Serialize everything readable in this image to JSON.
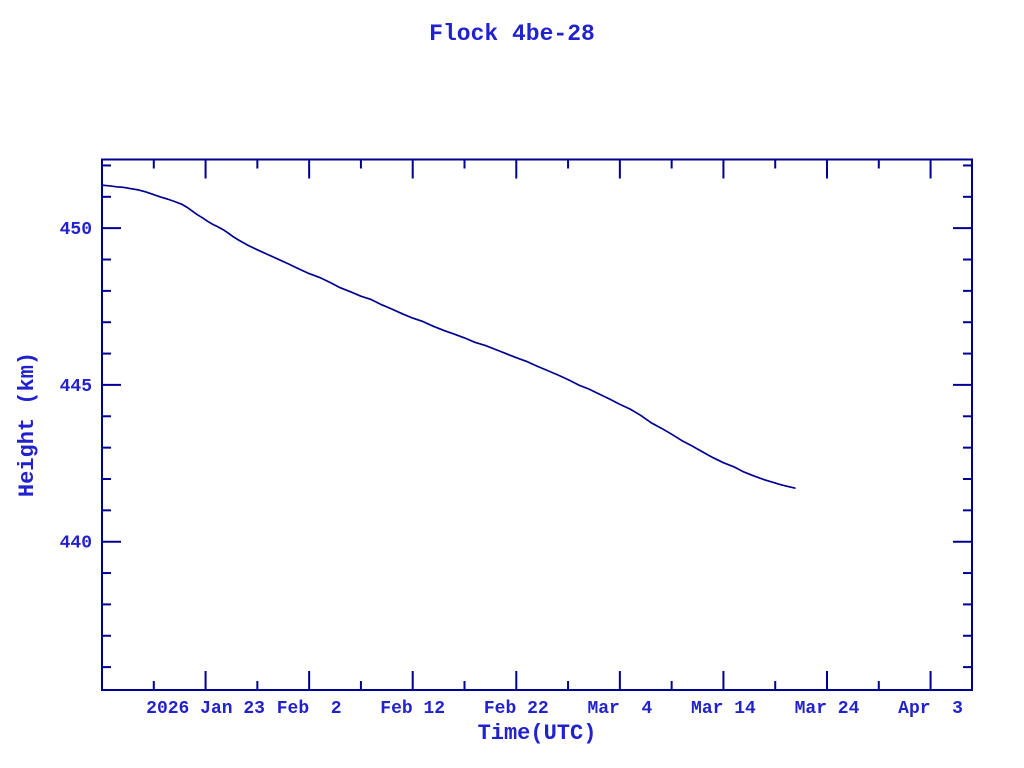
{
  "window": {
    "background": "#FFFFFF"
  },
  "chart_data": {
    "type": "line",
    "title": "Flock 4be-28",
    "xlabel": "Time(UTC)",
    "ylabel": "Height (km)",
    "x_unit_days_since": "2026 Jan 13",
    "xlim": [
      0,
      84
    ],
    "ylim": [
      435.27,
      452.19
    ],
    "grid": false,
    "legend": "none",
    "x_major_ticks": [
      {
        "t": 10,
        "label": "2026 Jan 23"
      },
      {
        "t": 20,
        "label": "Feb  2"
      },
      {
        "t": 30,
        "label": "Feb 12"
      },
      {
        "t": 40,
        "label": "Feb 22"
      },
      {
        "t": 50,
        "label": "Mar  4"
      },
      {
        "t": 60,
        "label": "Mar 14"
      },
      {
        "t": 70,
        "label": "Mar 24"
      },
      {
        "t": 80,
        "label": "Apr  3"
      }
    ],
    "x_minor_ticks": [
      5,
      15,
      25,
      35,
      45,
      55,
      65,
      75
    ],
    "y_major_ticks": [
      {
        "v": 440,
        "label": "440"
      },
      {
        "v": 445,
        "label": "445"
      },
      {
        "v": 450,
        "label": "450"
      }
    ],
    "y_minor_step": 1,
    "colors": {
      "line": "#000090",
      "axis": "#000090",
      "text": "#2222CC",
      "background": "#FFFFFF"
    },
    "series": [
      {
        "name": "Flock 4be-28 height",
        "points": [
          [
            0,
            451.37
          ],
          [
            0.7,
            451.35
          ],
          [
            1.4,
            451.32
          ],
          [
            2.1,
            451.3
          ],
          [
            2.8,
            451.26
          ],
          [
            3.5,
            451.22
          ],
          [
            4.2,
            451.16
          ],
          [
            4.9,
            451.08
          ],
          [
            5.6,
            451.0
          ],
          [
            6.3,
            450.93
          ],
          [
            7,
            450.85
          ],
          [
            7.7,
            450.76
          ],
          [
            8.2,
            450.67
          ],
          [
            8.7,
            450.55
          ],
          [
            9.2,
            450.43
          ],
          [
            9.7,
            450.33
          ],
          [
            10.2,
            450.22
          ],
          [
            10.7,
            450.12
          ],
          [
            11.2,
            450.04
          ],
          [
            11.7,
            449.95
          ],
          [
            12.2,
            449.84
          ],
          [
            12.7,
            449.72
          ],
          [
            13.2,
            449.62
          ],
          [
            14,
            449.47
          ],
          [
            15,
            449.31
          ],
          [
            16,
            449.16
          ],
          [
            17,
            449.01
          ],
          [
            18,
            448.86
          ],
          [
            19,
            448.7
          ],
          [
            20,
            448.55
          ],
          [
            21,
            448.43
          ],
          [
            22,
            448.27
          ],
          [
            23,
            448.1
          ],
          [
            24,
            447.97
          ],
          [
            25,
            447.83
          ],
          [
            26,
            447.72
          ],
          [
            27,
            447.56
          ],
          [
            28,
            447.42
          ],
          [
            29,
            447.27
          ],
          [
            30,
            447.13
          ],
          [
            31,
            447.02
          ],
          [
            32,
            446.87
          ],
          [
            33,
            446.74
          ],
          [
            34,
            446.62
          ],
          [
            35,
            446.5
          ],
          [
            36,
            446.36
          ],
          [
            37,
            446.26
          ],
          [
            38,
            446.13
          ],
          [
            39,
            446.0
          ],
          [
            40,
            445.87
          ],
          [
            41,
            445.75
          ],
          [
            42,
            445.6
          ],
          [
            43,
            445.46
          ],
          [
            44,
            445.32
          ],
          [
            45,
            445.17
          ],
          [
            46,
            445.0
          ],
          [
            47,
            444.87
          ],
          [
            48,
            444.71
          ],
          [
            49,
            444.55
          ],
          [
            50,
            444.38
          ],
          [
            51,
            444.23
          ],
          [
            52,
            444.03
          ],
          [
            53,
            443.8
          ],
          [
            54,
            443.62
          ],
          [
            55,
            443.43
          ],
          [
            56,
            443.22
          ],
          [
            57,
            443.05
          ],
          [
            58,
            442.86
          ],
          [
            59,
            442.68
          ],
          [
            60,
            442.52
          ],
          [
            61,
            442.39
          ],
          [
            62,
            442.22
          ],
          [
            63,
            442.09
          ],
          [
            64,
            441.97
          ],
          [
            64.7,
            441.9
          ],
          [
            65.4,
            441.83
          ],
          [
            66.1,
            441.77
          ],
          [
            66.9,
            441.71
          ]
        ]
      }
    ]
  }
}
